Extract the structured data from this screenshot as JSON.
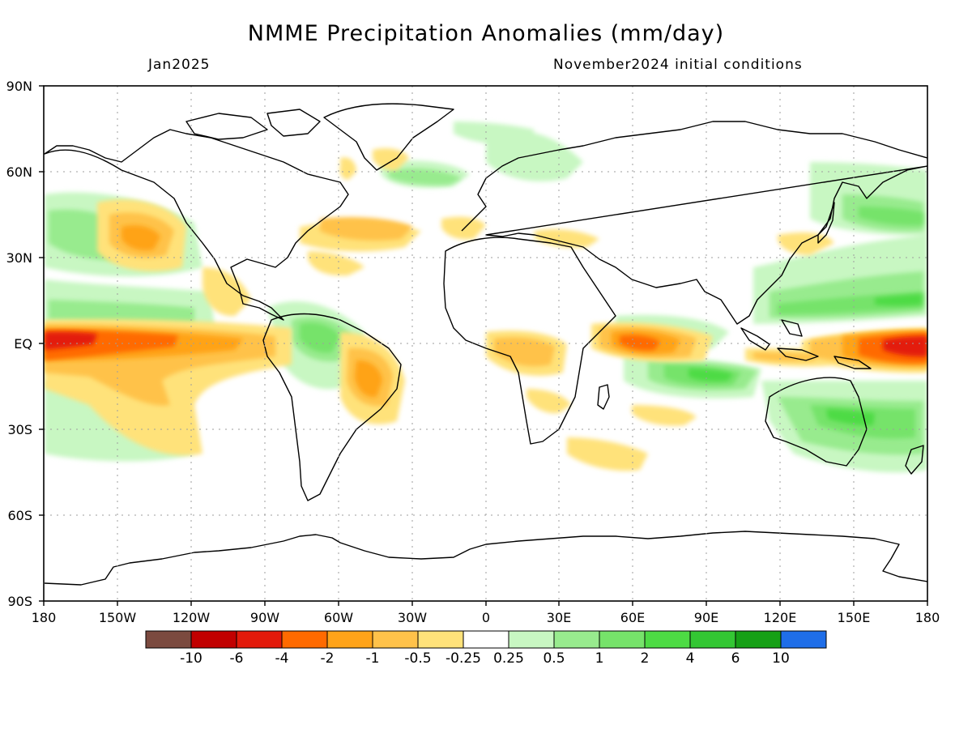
{
  "title": "NMME Precipitation Anomalies (mm/day)",
  "valid_month": "Jan2025",
  "initial_conditions": "November2024 initial conditions",
  "lat_labels": [
    "90N",
    "60N",
    "30N",
    "EQ",
    "30S",
    "60S",
    "90S"
  ],
  "lon_labels": [
    "180",
    "150W",
    "120W",
    "90W",
    "60W",
    "30W",
    "0",
    "30E",
    "60E",
    "90E",
    "120E",
    "150E",
    "180"
  ],
  "colorbar": {
    "colors": [
      "#7b4a3f",
      "#c10000",
      "#e31a0a",
      "#ff6a00",
      "#ffa319",
      "#ffc24a",
      "#ffe27a",
      "#ffffff",
      "#c8f7c2",
      "#98eb8e",
      "#76e36a",
      "#4ddb44",
      "#33c733",
      "#16a016",
      "#1f6ee8"
    ],
    "labels": [
      "-10",
      "-6",
      "-4",
      "-2",
      "-1",
      "-0.5",
      "-0.25",
      "0.25",
      "0.5",
      "1",
      "2",
      "4",
      "6",
      "10"
    ]
  }
}
